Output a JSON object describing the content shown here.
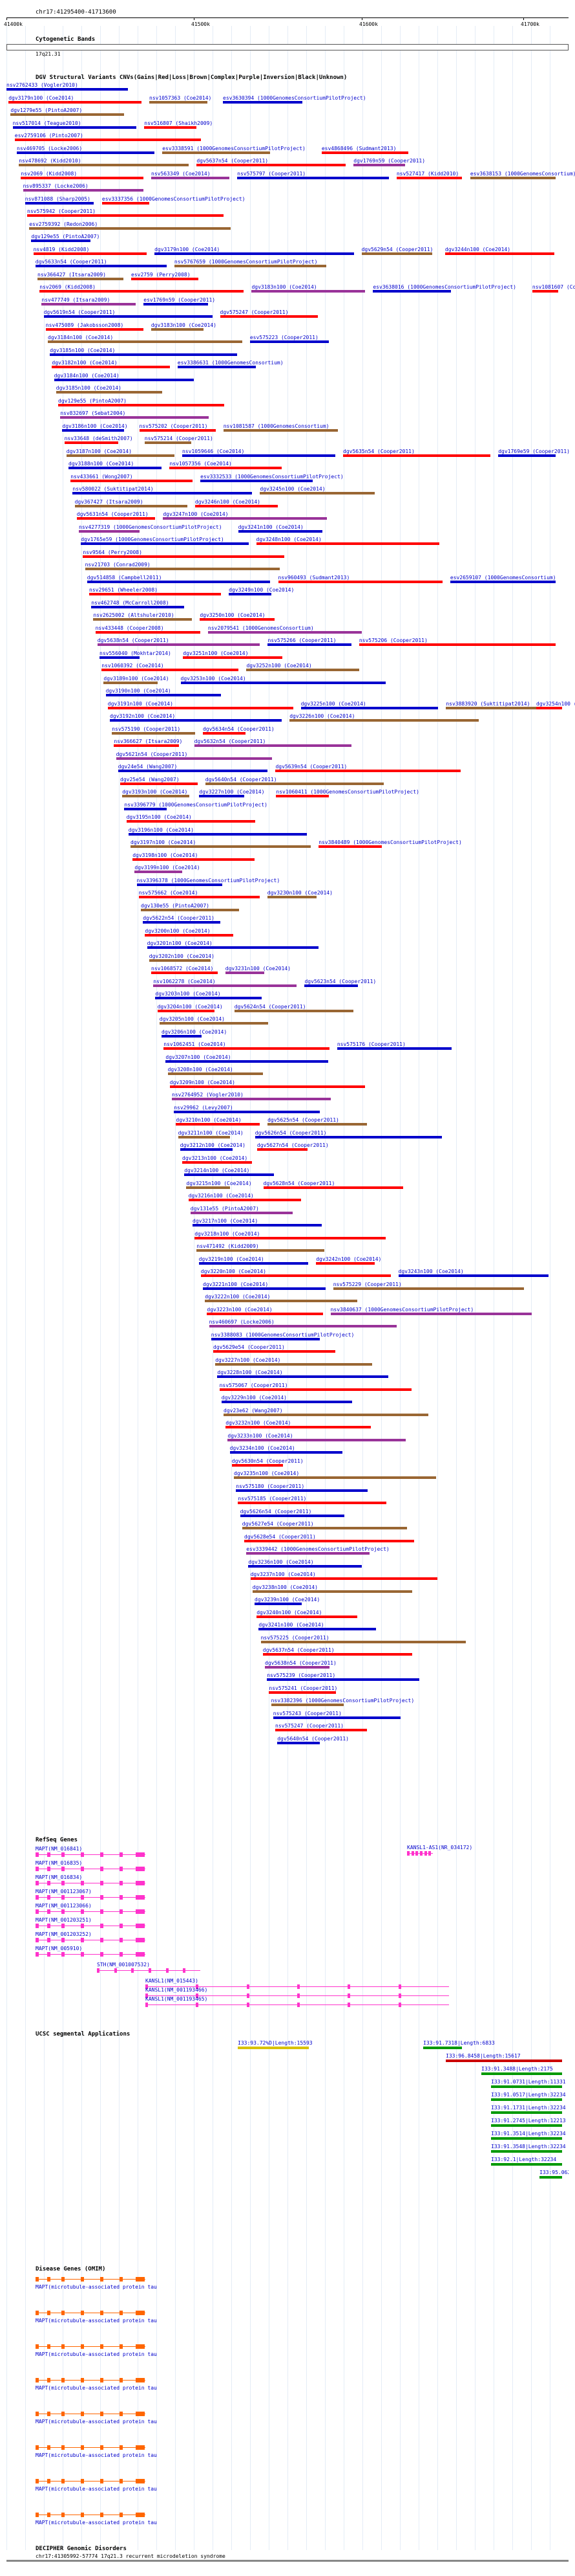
{
  "header": {
    "coords": "chr17:41295400-41713600"
  },
  "ruler": {
    "ticks": [
      "41400k",
      "41500k",
      "41600k",
      "41700k"
    ]
  },
  "cytobands": {
    "title": "Cytogenetic Bands",
    "band": "17q21.31"
  },
  "dgv": {
    "title": "DGV Structural Variants CNVs(Gains|Red|Loss|Brown|Complex|Purple|Inversion|Black|Unknown)",
    "rows": [
      [
        "nsv2762433 (Vogler2010)"
      ],
      [
        "dgv3179n100 (Coe2014)",
        "nsv1057363 (Coe2014)",
        "esv3630394 (1000GenomesConsortiumPilotProject)"
      ],
      [
        "dgv1279e55 (PintoA2007)"
      ],
      [
        "nsv517014 (Teague2010)",
        "nsv516807 (Shaikh2009)"
      ],
      [
        "esv2759106 (Pinto2007)"
      ],
      [
        "nsv469705 (Locke2006)",
        "esv3338591 (1000GenomesConsortiumPilotProject)",
        "esv4868496 (Sudmant2013)"
      ],
      [
        "nsv478692 (Kidd2010)",
        "dgv5637n54 (Cooper2011)",
        "dgv1769n59 (Cooper2011)"
      ],
      [
        "nsv2069 (Kidd2008)",
        "nsv563349 (Coe2014)",
        "nsv575797 (Cooper2011)",
        "nsv527417 (Kidd2010)",
        "esv3638153 (1000GenomesConsortium)"
      ],
      [
        "nsv895337 (Locke2006)"
      ],
      [
        "nsv871088 (Sharp2005)",
        "esv3337356 (1000GenomesConsortiumPilotProject)"
      ],
      [
        "nsv575942 (Cooper2011)"
      ],
      [
        "esv2759392 (Redon2006)"
      ],
      [
        "dgv129e55 (PintoA2007)"
      ],
      [
        "nsv4819 (Kidd2008)",
        "dgv3179n100 (Coe2014)",
        "dgv5629n54 (Cooper2011)",
        "dgv3244n100 (Coe2014)"
      ],
      [
        "dgv5633n54 (Cooper2011)",
        "nsv5767659 (1000GenomesConsortiumPilotProject)"
      ],
      [
        "nsv366427 (Itsara2009)",
        "esv2759 (Perry2008)"
      ],
      [
        "nsv2069 (Kidd2008)",
        "dgv3183n100 (Coe2014)",
        "esv3638016 (1000GenomesConsortiumPilotProject)",
        "nsv1081607 (Coe2014)"
      ],
      [
        "nsv477749 (Itsara2009)",
        "esv1769n59 (Cooper2011)"
      ],
      [
        "dgv5619n54 (Cooper2011)",
        "dgv575247 (Cooper2011)"
      ],
      [
        "nsv475089 (Jakobsson2008)",
        "dgv3183n100 (Coe2014)"
      ],
      [
        "dgv3184n100 (Coe2014)",
        "esv575223 (Cooper2011)"
      ],
      [
        "dgv3185n100 (Coe2014)"
      ],
      [
        "dgv3182n100 (Coe2014)",
        "esv3386631 (1000GenomesConsortium)"
      ],
      [
        "dgv3184n100 (Coe2014)"
      ],
      [
        "dgv3185n100 (Coe2014)"
      ],
      [
        "dgv129e55 (PintoA2007)"
      ],
      [
        "nsv832697 (Sebat2004)"
      ],
      [
        "dgv3186n100 (Coe2014)",
        "nsv575202 (Cooper2011)",
        "nsv1081587 (1000GenomesConsortium)"
      ],
      [
        "nsv33648 (deSmith2007)",
        "nsv575214 (Cooper2011)"
      ],
      [
        "dgv3187n100 (Coe2014)",
        "nsv1059646 (Coe2014)",
        "dgv5635n54 (Cooper2011)",
        "dgv1769e59 (Cooper2011)"
      ],
      [
        "dgv3188n100 (Coe2014)",
        "nsv1057356 (Coe2014)"
      ],
      [
        "nsv433661 (Wong2007)",
        "esv3332533 (1000GenomesConsortiumPilotProject)"
      ],
      [
        "nsv580022 (Suktitipat2014)",
        "dgv3245n100 (Coe2014)"
      ],
      [
        "dgv367427 (Itsara2009)",
        "dgv3246n100 (Coe2014)"
      ],
      [
        "dgv5631n54 (Cooper2011)",
        "dgv3247n100 (Coe2014)"
      ],
      [
        "nsv4277319 (1000GenomesConsortiumPilotProject)",
        "dgv3241n100 (Coe2014)"
      ],
      [
        "dgv1765e59 (1000GenomesConsortiumPilotProject)",
        "dgv3248n100 (Coe2014)"
      ],
      [
        "nsv9564 (Perry2008)"
      ],
      [
        "nsv21703 (Conrad2009)"
      ],
      [
        "dgv514858 (Campbell2011)",
        "nsv960493 (Sudmant2013)",
        "esv2659107 (1000GenomesConsortium)"
      ],
      [
        "nsv29651 (Wheeler2008)",
        "dgv3249n100 (Coe2014)"
      ],
      [
        "nsv462748 (McCarroll2008)"
      ],
      [
        "nsv2625002 (Altshuler2010)",
        "dgv3250n100 (Coe2014)"
      ],
      [
        "nsv433448 (Cooper2008)",
        "nsv2079541 (1000GenomesConsortium)"
      ],
      [
        "dgv5638n54 (Cooper2011)",
        "nsv575266 (Cooper2011)",
        "nsv575206 (Cooper2011)"
      ],
      [
        "nsv556040 (Mokhtar2014)",
        "dgv3251n100 (Coe2014)"
      ],
      [
        "nsv1060392 (Coe2014)",
        "dgv3252n100 (Coe2014)"
      ],
      [
        "dgv3189n100 (Coe2014)",
        "dgv3253n100 (Coe2014)"
      ],
      [
        "dgv3190n100 (Coe2014)"
      ],
      [
        "dgv3191n100 (Coe2014)",
        "dgv3225n100 (Coe2014)",
        "nsv3883920 (Suktitipat2014)",
        "dgv3254n100 (Coe2014)"
      ],
      [
        "dgv3192n100 (Coe2014)",
        "dgv3226n100 (Coe2014)"
      ],
      [
        "nsv575190 (Cooper2011)",
        "dgv5634n54 (Cooper2011)"
      ],
      [
        "nsv366627 (Itsara2009)",
        "dgv5632n54 (Cooper2011)"
      ],
      [
        "dgv5621n54 (Cooper2011)"
      ],
      [
        "dgv24e54 (Wang2007)",
        "dgv5639n54 (Cooper2011)"
      ],
      [
        "dgv25e54 (Wang2007)",
        "dgv5640n54 (Cooper2011)"
      ],
      [
        "dgv3193n100 (Coe2014)",
        "dgv3227n100 (Coe2014)",
        "nsv1060411 (1000GenomesConsortiumPilotProject)"
      ],
      [
        "nsv3396779 (1000GenomesConsortiumPilotProject)"
      ],
      [
        "dgv3195n100 (Coe2014)"
      ],
      [
        "dgv3196n100 (Coe2014)"
      ],
      [
        "dgv3197n100 (Coe2014)",
        "nsv3840489 (1000GenomesConsortiumPilotProject)"
      ],
      [
        "dgv3198n100 (Coe2014)"
      ],
      [
        "dgv3199n100 (Coe2014)"
      ],
      [
        "nsv3396378 (1000GenomesConsortiumPilotProject)"
      ],
      [
        "nsv575662 (Coe2014)",
        "dgv3230n100 (Coe2014)"
      ],
      [
        "dgv130e55 (PintoA2007)"
      ],
      [
        "dgv5622n54 (Cooper2011)"
      ],
      [
        "dgv3200n100 (Coe2014)"
      ],
      [
        "dgv3201n100 (Coe2014)"
      ],
      [
        "dgv3202n100 (Coe2014)"
      ],
      [
        "nsv1068572 (Coe2014)",
        "dgv3231n100 (Coe2014)"
      ],
      [
        "nsv1062278 (Coe2014)",
        "dgv5623n54 (Cooper2011)"
      ],
      [
        "dgv3203n100 (Coe2014)"
      ],
      [
        "dgv3204n100 (Coe2014)",
        "dgv5624n54 (Cooper2011)"
      ],
      [
        "dgv3205n100 (Coe2014)"
      ],
      [
        "dgv3206n100 (Coe2014)"
      ],
      [
        "nsv1062451 (Coe2014)",
        "nsv575176 (Cooper2011)"
      ],
      [
        "dgv3207n100 (Coe2014)"
      ],
      [
        "dgv3208n100 (Coe2014)"
      ],
      [
        "dgv3209n100 (Coe2014)"
      ],
      [
        "nsv2764952 (Vogler2010)"
      ],
      [
        "nsv29962 (Levy2007)"
      ],
      [
        "dgv3210n100 (Coe2014)",
        "dgv5625n54 (Cooper2011)"
      ],
      [
        "dgv3211n100 (Coe2014)",
        "dgv5626n54 (Cooper2011)"
      ],
      [
        "dgv3212n100 (Coe2014)",
        "dgv5627n54 (Cooper2011)"
      ],
      [
        "dgv3213n100 (Coe2014)"
      ],
      [
        "dgv3214n100 (Coe2014)"
      ],
      [
        "dgv3215n100 (Coe2014)",
        "dgv5628n54 (Cooper2011)"
      ],
      [
        "dgv3216n100 (Coe2014)"
      ],
      [
        "dgv131e55 (PintoA2007)"
      ],
      [
        "dgv3217n100 (Coe2014)"
      ],
      [
        "dgv3218n100 (Coe2014)"
      ],
      [
        "nsv471492 (Kidd2009)"
      ],
      [
        "dgv3219n100 (Coe2014)",
        "dgv3242n100 (Coe2014)"
      ],
      [
        "dgv3220n100 (Coe2014)",
        "dgv3243n100 (Coe2014)"
      ],
      [
        "dgv3221n100 (Coe2014)",
        "nsv575229 (Cooper2011)"
      ],
      [
        "dgv3222n100 (Coe2014)"
      ],
      [
        "dgv3223n100 (Coe2014)",
        "nsv3840637 (1000GenomesConsortiumPilotProject)"
      ],
      [
        "nsv460697 (Locke2006)"
      ],
      [
        "nsv3388083 (1000GenomesConsortiumPilotProject)"
      ],
      [
        "dgv5629e54 (Cooper2011)"
      ],
      [
        "dgv3227n100 (Coe2014)"
      ],
      [
        "dgv3228n100 (Coe2014)"
      ],
      [
        "nsv575067 (Cooper2011)"
      ],
      [
        "dgv3229n100 (Coe2014)"
      ],
      [
        "dgv23e62 (Wang2007)"
      ],
      [
        "dgv3232n100 (Coe2014)"
      ],
      [
        "dgv3233n100 (Coe2014)"
      ],
      [
        "dgv3234n100 (Coe2014)"
      ],
      [
        "dgv5630n54 (Cooper2011)"
      ],
      [
        "dgv3235n100 (Coe2014)"
      ],
      [
        "nsv575180 (Cooper2011)"
      ],
      [
        "nsv575185 (Cooper2011)"
      ],
      [
        "dgv5626n54 (Cooper2011)"
      ],
      [
        "dgv5627e54 (Cooper2011)"
      ],
      [
        "dgv5628e54 (Cooper2011)"
      ],
      [
        "esv3339442 (1000GenomesConsortiumPilotProject)"
      ],
      [
        "dgv3236n100 (Coe2014)"
      ],
      [
        "dgv3237n100 (Coe2014)"
      ],
      [
        "dgv3238n100 (Coe2014)"
      ],
      [
        "dgv3239n100 (Coe2014)"
      ],
      [
        "dgv3240n100 (Coe2014)"
      ],
      [
        "dgv3241n100 (Coe2014)"
      ],
      [
        "nsv575225 (Cooper2011)"
      ],
      [
        "dgv5637n54 (Cooper2011)"
      ],
      [
        "dgv5638n54 (Cooper2011)"
      ],
      [
        "nsv575239 (Cooper2011)"
      ],
      [
        "nsv575241 (Cooper2011)"
      ],
      [
        "nsv3382396 (1000GenomesConsortiumPilotProject)"
      ],
      [
        "nsv575243 (Cooper2011)"
      ],
      [
        "nsv575247 (Cooper2011)"
      ],
      [
        "dgv5640n54 (Cooper2011)"
      ]
    ]
  },
  "refseq": {
    "title": "RefSeq Genes",
    "genes": [
      "MAPT(NM_016841)",
      "MAPT(NM_016835)",
      "MAPT(NM_016834)",
      "MAPT(NM_001123067)",
      "MAPT(NM_001123066)",
      "MAPT(NM_001203251)",
      "MAPT(NM_001203252)",
      "MAPT(NM_005910)"
    ],
    "others": [
      "KANSL1-AS1(NR_034172)",
      "STH(NM_001007532)",
      "KANSL1(NM_015443)",
      "KANSL1(NM_001193466)",
      "KANSL1(NM_001193465)"
    ]
  },
  "segdups": {
    "title": "UCSC segmental Applications",
    "items": [
      "I33:93.72%D|Length:15593",
      "I33:91.7318|Length:6833",
      "I33:96.8458|Length:15617",
      "I33:91.3488|Length:2175",
      "I33:91.0731|Length:11331",
      "I33:91.0517|Length:32234",
      "I33:91.1731|Length:32234",
      "I33:91.2745|Length:12213",
      "I33:91.3514|Length:32234",
      "I33:91.3548|Length:32234",
      "I33:92.1|Length:32234",
      "I33:95.0625|Length:2175"
    ]
  },
  "disease": {
    "title": "Disease Genes (OMIM)",
    "items": [
      "MAPT(microtubule-associated protein tau",
      "MAPT(microtubule-associated protein tau",
      "MAPT(microtubule-associated protein tau",
      "MAPT(microtubule-associated protein tau",
      "MAPT(microtubule-associated protein tau",
      "MAPT(microtubule-associated protein tau",
      "MAPT(microtubule-associated protein tau",
      "MAPT(microtubule-associated protein tau"
    ]
  },
  "decipher": {
    "title": "DECIPHER Genomic Disorders",
    "item": "chr17:41305992-57774 17q21.3 recurrent microdeletion syndrome"
  },
  "colors": {
    "gain": "#0000cc",
    "loss": "#ff0000",
    "complex": "#996633",
    "inversion": "#993399",
    "gene": "#ff33cc",
    "disease": "#ff6600",
    "segdup": "#009900"
  }
}
